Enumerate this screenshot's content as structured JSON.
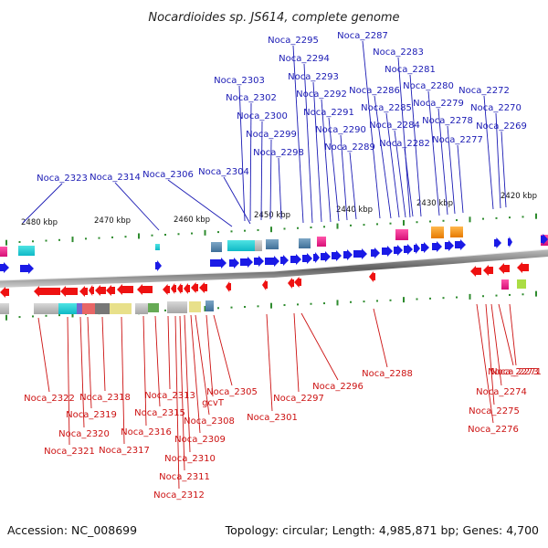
{
  "title": "Nocardioides sp. JS614, complete genome",
  "footer": {
    "accession": "Accession: NC_008699",
    "info": "Topology: circular; Length: 4,985,871 bp; Genes: 4,700"
  },
  "colors": {
    "forward": "#1a1ae6",
    "reverse": "#ee1111",
    "label_forward": "#1a1ab4",
    "label_reverse": "#cc1111",
    "backbone": "#777777",
    "tick_dot": "#2e8b2e"
  },
  "scale_ticks": [
    "2480 kbp",
    "2470 kbp",
    "2460 kbp",
    "2450 kbp",
    "2440 kbp",
    "2430 kbp",
    "2420 kbp"
  ],
  "forward_labels": [
    "Noca_2323",
    "Noca_2314",
    "Noca_2306",
    "Noca_2304",
    "Noca_2303",
    "Noca_2302",
    "Noca_2300",
    "Noca_2299",
    "Noca_2298",
    "Noca_2295",
    "Noca_2294",
    "Noca_2293",
    "Noca_2292",
    "Noca_2291",
    "Noca_2290",
    "Noca_2289",
    "Noca_2287",
    "Noca_2286",
    "Noca_2285",
    "Noca_2284",
    "Noca_2283",
    "Noca_2282",
    "Noca_2281",
    "Noca_2280",
    "Noca_2279",
    "Noca_2278",
    "Noca_2277",
    "Noca_2272",
    "Noca_2270",
    "Noca_2269"
  ],
  "reverse_labels": [
    "Noca_2322",
    "Noca_2321",
    "Noca_2320",
    "Noca_2319",
    "Noca_2318",
    "Noca_2317",
    "Noca_2316",
    "Noca_2315",
    "Noca_2313",
    "Noca_2312",
    "Noca_2311",
    "Noca_2310",
    "Noca_2309",
    "Noca_2308",
    "gcvT",
    "Noca_2305",
    "Noca_2301",
    "Noca_2297",
    "Noca_2296",
    "Noca_2288",
    "Noca_2276",
    "Noca_2275",
    "Noca_2274",
    "Noca_2273",
    "Noca_2271"
  ]
}
